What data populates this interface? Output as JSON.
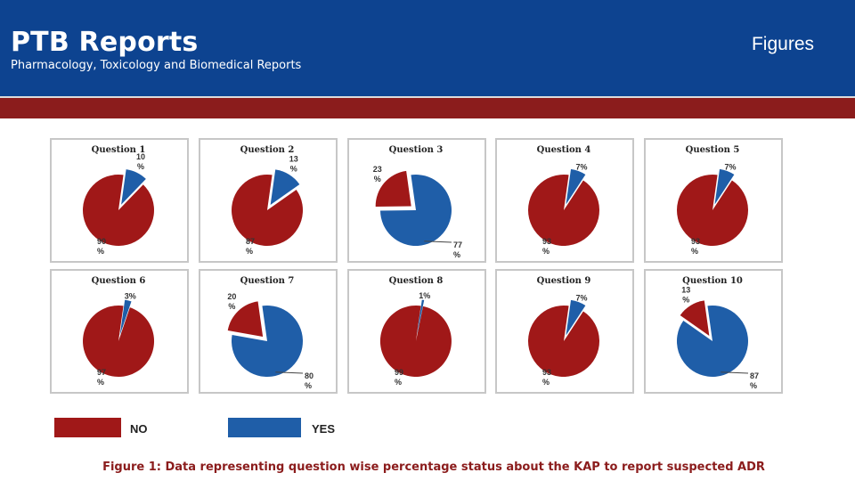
{
  "header": {
    "brand": "PTB Reports",
    "subtitle": "Pharmacology, Toxicology and Biomedical Reports",
    "section": "Figures"
  },
  "colors": {
    "no": "#a01818",
    "yes": "#1f5ea8",
    "header_bg": "#0d4390",
    "band": "#8b1c1c"
  },
  "chart_data": {
    "type": "pie",
    "legend": [
      "NO",
      "YES"
    ],
    "panels": [
      {
        "title": "Question 1",
        "no": 90,
        "yes": 10,
        "no_label": "90 %",
        "yes_label": "10 %"
      },
      {
        "title": "Question 2",
        "no": 87,
        "yes": 13,
        "no_label": "87 %",
        "yes_label": "13 %"
      },
      {
        "title": "Question 3",
        "no": 23,
        "yes": 77,
        "no_label": "23 %",
        "yes_label": "77 %"
      },
      {
        "title": "Question 4",
        "no": 93,
        "yes": 7,
        "no_label": "93 %",
        "yes_label": "7%"
      },
      {
        "title": "Question 5",
        "no": 93,
        "yes": 7,
        "no_label": "93 %",
        "yes_label": "7%"
      },
      {
        "title": "Question 6",
        "no": 97,
        "yes": 3,
        "no_label": "97 %",
        "yes_label": "3%"
      },
      {
        "title": "Question 7",
        "no": 20,
        "yes": 80,
        "no_label": "20 %",
        "yes_label": "80 %"
      },
      {
        "title": "Question 8",
        "no": 99,
        "yes": 1,
        "no_label": "99 %",
        "yes_label": "1%"
      },
      {
        "title": "Question 9",
        "no": 93,
        "yes": 7,
        "no_label": "93 %",
        "yes_label": "7%"
      },
      {
        "title": "Question 10",
        "no": 13,
        "yes": 87,
        "no_label": "13 %",
        "yes_label": "87 %"
      }
    ]
  },
  "caption": "Figure 1: Data representing question wise percentage status about the KAP to report suspected ADR"
}
